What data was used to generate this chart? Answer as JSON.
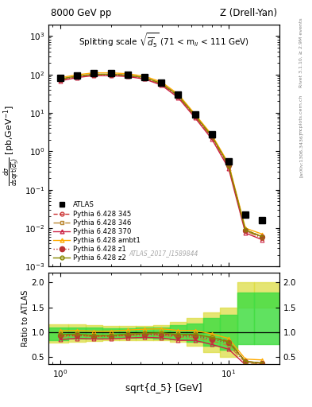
{
  "title_left": "8000 GeV pp",
  "title_right": "Z (Drell-Yan)",
  "main_title": "Splitting scale $\\sqrt{\\overline{d}_5}$ (71 < m$_{ll}$ < 111 GeV)",
  "ylabel_main": "$\\frac{d\\sigma}{d\\mathrm{sqrt}(\\overline{d}_5)}$ [pb,GeV$^{-1}$]",
  "ylabel_ratio": "Ratio to ATLAS",
  "xlabel": "sqrt{d_5} [GeV]",
  "watermark": "ATLAS_2017_I1589844",
  "rivet_label": "Rivet 3.1.10, ≥ 2.9M events",
  "arxiv_label": "[arXiv:1306.3436]",
  "mcplots_label": "mcplots.cern.ch",
  "x_data": [
    1.0,
    1.26,
    1.585,
    2.0,
    2.512,
    3.162,
    3.981,
    5.012,
    6.31,
    7.943,
    10.0,
    12.59,
    15.85
  ],
  "atlas_y": [
    80,
    95,
    108,
    108,
    100,
    85,
    60,
    30,
    9.0,
    2.8,
    0.55,
    0.022,
    0.016
  ],
  "py345_y": [
    75,
    90,
    100,
    100,
    95,
    82,
    58,
    28,
    8.5,
    2.5,
    0.45,
    0.009,
    0.006
  ],
  "py346_y": [
    72,
    88,
    98,
    98,
    93,
    80,
    56,
    27,
    8.0,
    2.3,
    0.4,
    0.0085,
    0.0055
  ],
  "py370_y": [
    68,
    83,
    93,
    93,
    88,
    76,
    53,
    25,
    7.5,
    2.1,
    0.36,
    0.0075,
    0.005
  ],
  "pyambt1_y": [
    82,
    98,
    110,
    110,
    104,
    90,
    64,
    31,
    9.3,
    2.7,
    0.48,
    0.01,
    0.007
  ],
  "pyz1_y": [
    74,
    89,
    99,
    99,
    94,
    81,
    57,
    27.5,
    8.3,
    2.4,
    0.43,
    0.0088,
    0.0058
  ],
  "pyz2_y": [
    76,
    91,
    101,
    101,
    96,
    83,
    59,
    28.5,
    8.6,
    2.5,
    0.44,
    0.009,
    0.006
  ],
  "ratio_x_edges": [
    0.85,
    1.12,
    1.41,
    1.78,
    2.24,
    2.82,
    3.55,
    4.47,
    5.62,
    7.08,
    8.91,
    11.22,
    14.13,
    20.0
  ],
  "band_outer_lo": [
    0.78,
    0.8,
    0.82,
    0.84,
    0.84,
    0.84,
    0.83,
    0.8,
    0.72,
    0.6,
    0.5,
    1.5,
    1.5
  ],
  "band_outer_hi": [
    1.15,
    1.15,
    1.14,
    1.13,
    1.12,
    1.13,
    1.14,
    1.2,
    1.28,
    1.4,
    1.5,
    2.0,
    2.0
  ],
  "band_inner_lo": [
    0.84,
    0.86,
    0.87,
    0.88,
    0.88,
    0.88,
    0.87,
    0.85,
    0.8,
    0.72,
    0.65,
    0.75,
    0.75
  ],
  "band_inner_hi": [
    1.1,
    1.1,
    1.09,
    1.08,
    1.08,
    1.09,
    1.1,
    1.14,
    1.18,
    1.28,
    1.35,
    1.8,
    1.8
  ],
  "color_345": "#cc3333",
  "color_346": "#bb8833",
  "color_370": "#cc2244",
  "color_ambt1": "#ffaa00",
  "color_z1": "#bb3333",
  "color_z2": "#888800",
  "color_atlas": "#000000",
  "color_band_inner": "#44dd44",
  "color_band_outer": "#dddd44",
  "xlim": [
    0.85,
    20.0
  ],
  "ylim_main": [
    0.001,
    2000
  ],
  "ylim_ratio": [
    0.35,
    2.2
  ],
  "ratio_yticks": [
    0.5,
    1.0,
    1.5,
    2.0
  ]
}
